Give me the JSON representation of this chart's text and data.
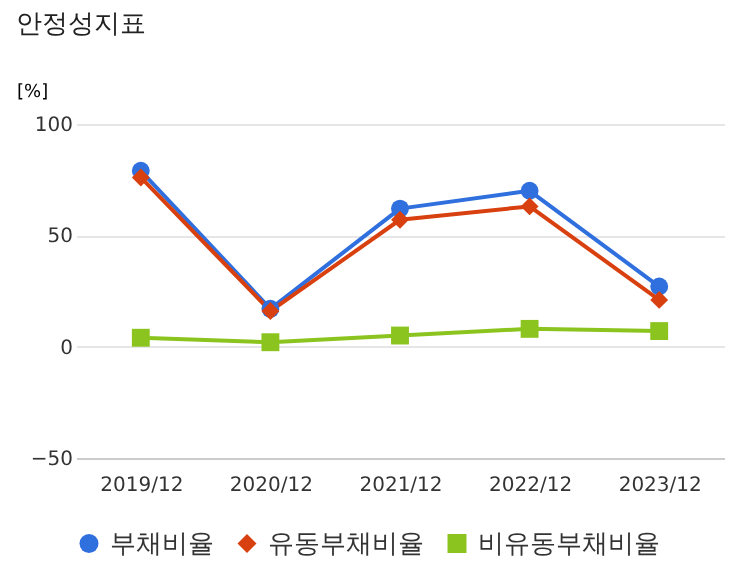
{
  "chart_data": {
    "type": "line",
    "title": "안정성지표",
    "ylabel": "[%]",
    "categories": [
      "2019/12",
      "2020/12",
      "2021/12",
      "2022/12",
      "2023/12"
    ],
    "series": [
      {
        "name": "부채비율",
        "color": "#2f6fde",
        "marker": "circle",
        "values": [
          79,
          17,
          62,
          70,
          27
        ]
      },
      {
        "name": "유동부채비율",
        "color": "#d9400f",
        "marker": "diamond",
        "values": [
          76,
          16,
          57,
          63,
          21
        ]
      },
      {
        "name": "비유동부채비율",
        "color": "#8cc41f",
        "marker": "square",
        "values": [
          4,
          2,
          5,
          8,
          7
        ]
      }
    ],
    "ylim": [
      -50,
      100
    ],
    "yticks": [
      -50,
      0,
      50,
      100
    ],
    "grid": "y",
    "legend": "bottom",
    "line_style": "solid"
  }
}
